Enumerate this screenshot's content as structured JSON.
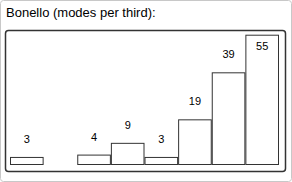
{
  "chart_data": {
    "type": "bar",
    "title": "Bonello (modes per third):",
    "categories": [
      null,
      null,
      null,
      null,
      null,
      null,
      null,
      null
    ],
    "values": [
      3,
      null,
      4,
      9,
      3,
      19,
      39,
      55
    ],
    "color": "#ffffff",
    "ylim": [
      0,
      57
    ],
    "data_labels": true,
    "tick_labels": false
  }
}
